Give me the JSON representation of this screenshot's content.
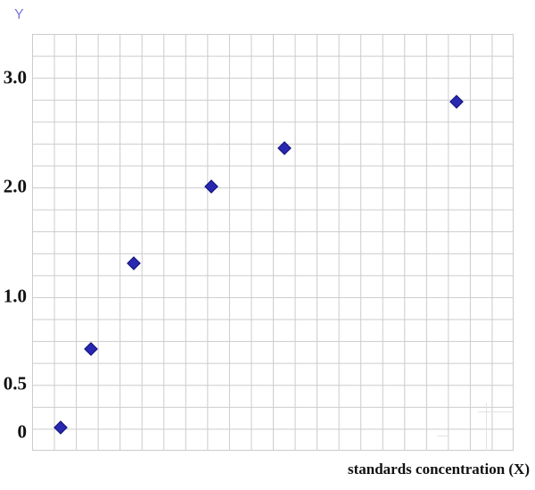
{
  "colors": {
    "gridColor": "#cbcbcb",
    "markerColor": "#2828b0",
    "ylabelColor": "#7a7ad8"
  },
  "chart_data": {
    "type": "scatter",
    "title": "",
    "xlabel": "standards concentration (X)",
    "ylabel": "Y",
    "grid": "on",
    "legend": "none",
    "ylim": [
      0,
      3.2
    ],
    "x_tick_labels": [],
    "y_ticks": [
      {
        "label": "3.0",
        "value": 3.0
      },
      {
        "label": "2.0",
        "value": 2.0
      },
      {
        "label": "1.0",
        "value": 1.0
      },
      {
        "label": "0.5",
        "value": 0.5
      },
      {
        "label": "0",
        "value": 0.0
      }
    ],
    "series": [
      {
        "name": "standards",
        "marker": "diamond",
        "points": [
          {
            "x_rel": 0.059,
            "y": 0.05
          },
          {
            "x_rel": 0.122,
            "y": 0.7
          },
          {
            "x_rel": 0.211,
            "y": 1.3
          },
          {
            "x_rel": 0.372,
            "y": 2.0
          },
          {
            "x_rel": 0.524,
            "y": 2.35
          },
          {
            "x_rel": 0.881,
            "y": 2.78
          }
        ]
      }
    ]
  }
}
